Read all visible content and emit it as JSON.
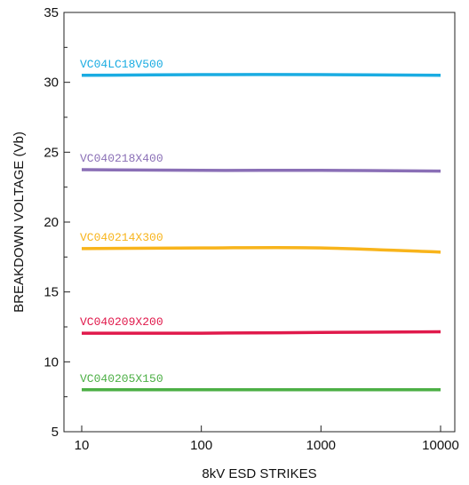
{
  "chart_data": {
    "type": "line",
    "title": "",
    "xlabel": "8kV ESD STRIKES",
    "ylabel": "BREAKDOWN VOLTAGE (Vb)",
    "x_scale": "log",
    "xlim": [
      10,
      10000
    ],
    "ylim": [
      5,
      35
    ],
    "x_ticks": [
      "10",
      "100",
      "1000",
      "10000"
    ],
    "y_ticks": [
      "5",
      "10",
      "15",
      "20",
      "25",
      "30",
      "35"
    ],
    "grid": false,
    "series": [
      {
        "name": "VC04LC18V500",
        "color": "#1aace2",
        "x": [
          10,
          100,
          1000,
          10000
        ],
        "values": [
          30.5,
          30.55,
          30.55,
          30.5
        ]
      },
      {
        "name": "VC040218X400",
        "color": "#8a6fb6",
        "x": [
          10,
          100,
          1000,
          10000
        ],
        "values": [
          23.75,
          23.7,
          23.7,
          23.65
        ]
      },
      {
        "name": "VC040214X300",
        "color": "#f8b41b",
        "x": [
          10,
          100,
          1000,
          10000
        ],
        "values": [
          18.1,
          18.15,
          18.15,
          17.85
        ]
      },
      {
        "name": "VC040209X200",
        "color": "#e0194b",
        "x": [
          10,
          100,
          1000,
          10000
        ],
        "values": [
          12.05,
          12.05,
          12.1,
          12.15
        ]
      },
      {
        "name": "VC040205X150",
        "color": "#4caf45",
        "x": [
          10,
          100,
          1000,
          10000
        ],
        "values": [
          8.0,
          8.0,
          8.0,
          8.0
        ]
      }
    ]
  }
}
